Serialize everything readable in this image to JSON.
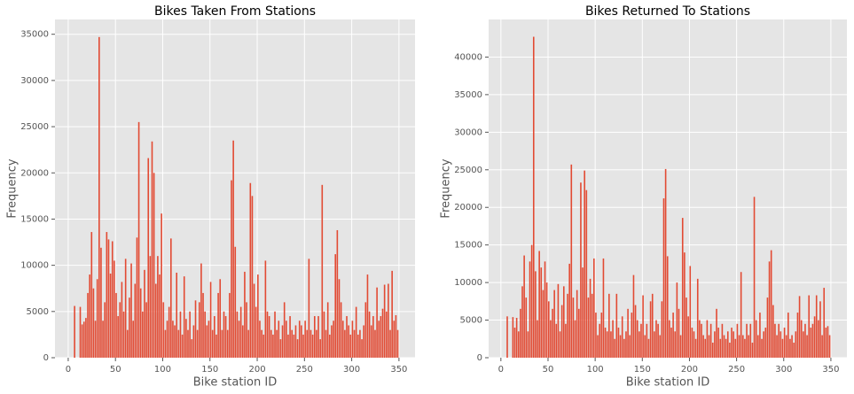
{
  "chart_data": [
    {
      "type": "histogram",
      "title": "Bikes Taken From Stations",
      "x_label": "Bike station ID",
      "y_label": "Frequency",
      "color": "#e24a33",
      "grid": true,
      "xlim": [
        -14,
        367
      ],
      "xticks": [
        0,
        50,
        100,
        150,
        200,
        250,
        300,
        350
      ],
      "ylim": [
        0,
        36600
      ],
      "yticks": [
        0,
        5000,
        10000,
        15000,
        20000,
        25000,
        30000,
        35000
      ],
      "bins": [
        0,
        2,
        4,
        6,
        8,
        10,
        12,
        14,
        16,
        18,
        20,
        22,
        24,
        26,
        28,
        30,
        32,
        34,
        36,
        38,
        40,
        42,
        44,
        46,
        48,
        50,
        52,
        54,
        56,
        58,
        60,
        62,
        64,
        66,
        68,
        70,
        72,
        74,
        76,
        78,
        80,
        82,
        84,
        86,
        88,
        90,
        92,
        94,
        96,
        98,
        100,
        102,
        104,
        106,
        108,
        110,
        112,
        114,
        116,
        118,
        120,
        122,
        124,
        126,
        128,
        130,
        132,
        134,
        136,
        138,
        140,
        142,
        144,
        146,
        148,
        150,
        152,
        154,
        156,
        158,
        160,
        162,
        164,
        166,
        168,
        170,
        172,
        174,
        176,
        178,
        180,
        182,
        184,
        186,
        188,
        190,
        192,
        194,
        196,
        198,
        200,
        202,
        204,
        206,
        208,
        210,
        212,
        214,
        216,
        218,
        220,
        222,
        224,
        226,
        228,
        230,
        232,
        234,
        236,
        238,
        240,
        242,
        244,
        246,
        248,
        250,
        252,
        254,
        256,
        258,
        260,
        262,
        264,
        266,
        268,
        270,
        272,
        274,
        276,
        278,
        280,
        282,
        284,
        286,
        288,
        290,
        292,
        294,
        296,
        298,
        300,
        302,
        304,
        306,
        308,
        310,
        312,
        314,
        316,
        318,
        320,
        322,
        324,
        326,
        328,
        330,
        332,
        334,
        336,
        338,
        340,
        342,
        344,
        346,
        348,
        350
      ],
      "values": [
        0,
        0,
        0,
        5600,
        0,
        0,
        5500,
        3600,
        3900,
        4300,
        7000,
        9000,
        13600,
        7500,
        4000,
        8500,
        34700,
        11900,
        4000,
        6000,
        13600,
        12800,
        9100,
        12600,
        10500,
        7000,
        4500,
        6000,
        8200,
        5000,
        10700,
        3000,
        6500,
        10200,
        4000,
        8000,
        13000,
        25500,
        7500,
        5000,
        9500,
        6000,
        21600,
        11000,
        23400,
        20000,
        8000,
        11000,
        9000,
        15600,
        6000,
        3000,
        4000,
        5500,
        12900,
        4000,
        3500,
        9200,
        3000,
        5000,
        2500,
        8800,
        4200,
        3000,
        5000,
        2000,
        3500,
        6200,
        3000,
        6000,
        10200,
        7000,
        5000,
        3500,
        4000,
        8200,
        3000,
        4500,
        2500,
        7000,
        8500,
        3000,
        5000,
        4500,
        3000,
        7000,
        19200,
        23500,
        12000,
        5000,
        4000,
        5500,
        3500,
        9300,
        6000,
        3000,
        18900,
        17500,
        8000,
        5500,
        9000,
        4000,
        3000,
        2500,
        10500,
        5000,
        4500,
        3000,
        2500,
        5000,
        3000,
        4000,
        2000,
        3500,
        6000,
        4000,
        2500,
        4500,
        3000,
        2500,
        3500,
        2000,
        4000,
        3500,
        2500,
        4000,
        3000,
        10700,
        3000,
        2500,
        4500,
        3000,
        4500,
        2000,
        18700,
        5000,
        3000,
        6000,
        2500,
        3500,
        4000,
        11200,
        13800,
        8500,
        6000,
        4000,
        3000,
        4500,
        3500,
        2500,
        4000,
        3000,
        5500,
        2500,
        3000,
        2000,
        3500,
        6000,
        9000,
        5000,
        3500,
        4500,
        3000,
        7600,
        4000,
        4500,
        5300,
        7900,
        5000,
        8000,
        3000,
        9400,
        4000,
        4600,
        3000
      ]
    },
    {
      "type": "histogram",
      "title": "Bikes Returned To Stations",
      "x_label": "Bike station ID",
      "y_label": "Frequency",
      "color": "#e24a33",
      "grid": true,
      "xlim": [
        -13,
        367
      ],
      "xticks": [
        0,
        50,
        100,
        150,
        200,
        250,
        300,
        350
      ],
      "ylim": [
        0,
        45000
      ],
      "yticks": [
        0,
        5000,
        10000,
        15000,
        20000,
        25000,
        30000,
        35000,
        40000
      ],
      "bins": [
        0,
        2,
        4,
        6,
        8,
        10,
        12,
        14,
        16,
        18,
        20,
        22,
        24,
        26,
        28,
        30,
        32,
        34,
        36,
        38,
        40,
        42,
        44,
        46,
        48,
        50,
        52,
        54,
        56,
        58,
        60,
        62,
        64,
        66,
        68,
        70,
        72,
        74,
        76,
        78,
        80,
        82,
        84,
        86,
        88,
        90,
        92,
        94,
        96,
        98,
        100,
        102,
        104,
        106,
        108,
        110,
        112,
        114,
        116,
        118,
        120,
        122,
        124,
        126,
        128,
        130,
        132,
        134,
        136,
        138,
        140,
        142,
        144,
        146,
        148,
        150,
        152,
        154,
        156,
        158,
        160,
        162,
        164,
        166,
        168,
        170,
        172,
        174,
        176,
        178,
        180,
        182,
        184,
        186,
        188,
        190,
        192,
        194,
        196,
        198,
        200,
        202,
        204,
        206,
        208,
        210,
        212,
        214,
        216,
        218,
        220,
        222,
        224,
        226,
        228,
        230,
        232,
        234,
        236,
        238,
        240,
        242,
        244,
        246,
        248,
        250,
        252,
        254,
        256,
        258,
        260,
        262,
        264,
        266,
        268,
        270,
        272,
        274,
        276,
        278,
        280,
        282,
        284,
        286,
        288,
        290,
        292,
        294,
        296,
        298,
        300,
        302,
        304,
        306,
        308,
        310,
        312,
        314,
        316,
        318,
        320,
        322,
        324,
        326,
        328,
        330,
        332,
        334,
        336,
        338,
        340,
        342,
        344,
        346,
        348,
        350
      ],
      "values": [
        0,
        0,
        0,
        5500,
        0,
        0,
        5400,
        4000,
        5300,
        3500,
        6500,
        9500,
        13600,
        8000,
        3500,
        12800,
        15000,
        42700,
        11500,
        5000,
        14200,
        12000,
        9000,
        12800,
        10000,
        7500,
        5000,
        6500,
        9000,
        4500,
        9800,
        3500,
        7000,
        9500,
        4500,
        8500,
        12500,
        25700,
        8000,
        5000,
        9000,
        6500,
        23300,
        12000,
        24900,
        22300,
        8000,
        10500,
        8500,
        13200,
        6000,
        3000,
        4500,
        6000,
        13200,
        4000,
        3500,
        8500,
        3500,
        5000,
        2500,
        8500,
        4000,
        3000,
        5500,
        2500,
        3500,
        6500,
        3000,
        6000,
        11000,
        7000,
        5000,
        3500,
        4500,
        8300,
        3000,
        4500,
        2500,
        7500,
        8500,
        3500,
        5000,
        4500,
        3000,
        7500,
        21200,
        25100,
        13500,
        5000,
        4000,
        6000,
        3500,
        10000,
        6500,
        3000,
        18600,
        14000,
        8000,
        5500,
        12200,
        4000,
        3500,
        2500,
        10500,
        5000,
        4500,
        3000,
        2500,
        5000,
        3000,
        4500,
        2000,
        3500,
        6500,
        4000,
        2500,
        4500,
        3000,
        2500,
        3500,
        2000,
        4000,
        3500,
        2500,
        4500,
        3000,
        11400,
        3000,
        2500,
        4500,
        3000,
        4500,
        2000,
        21400,
        5000,
        3000,
        6000,
        2500,
        3500,
        4000,
        8000,
        12800,
        14300,
        7000,
        4500,
        3000,
        4500,
        3500,
        2500,
        4000,
        3000,
        6000,
        2500,
        3000,
        2000,
        3500,
        6000,
        8200,
        5000,
        3500,
        4500,
        3000,
        8300,
        4000,
        4500,
        5500,
        8300,
        5000,
        7500,
        3000,
        9300,
        4000,
        4200,
        3000
      ]
    }
  ]
}
